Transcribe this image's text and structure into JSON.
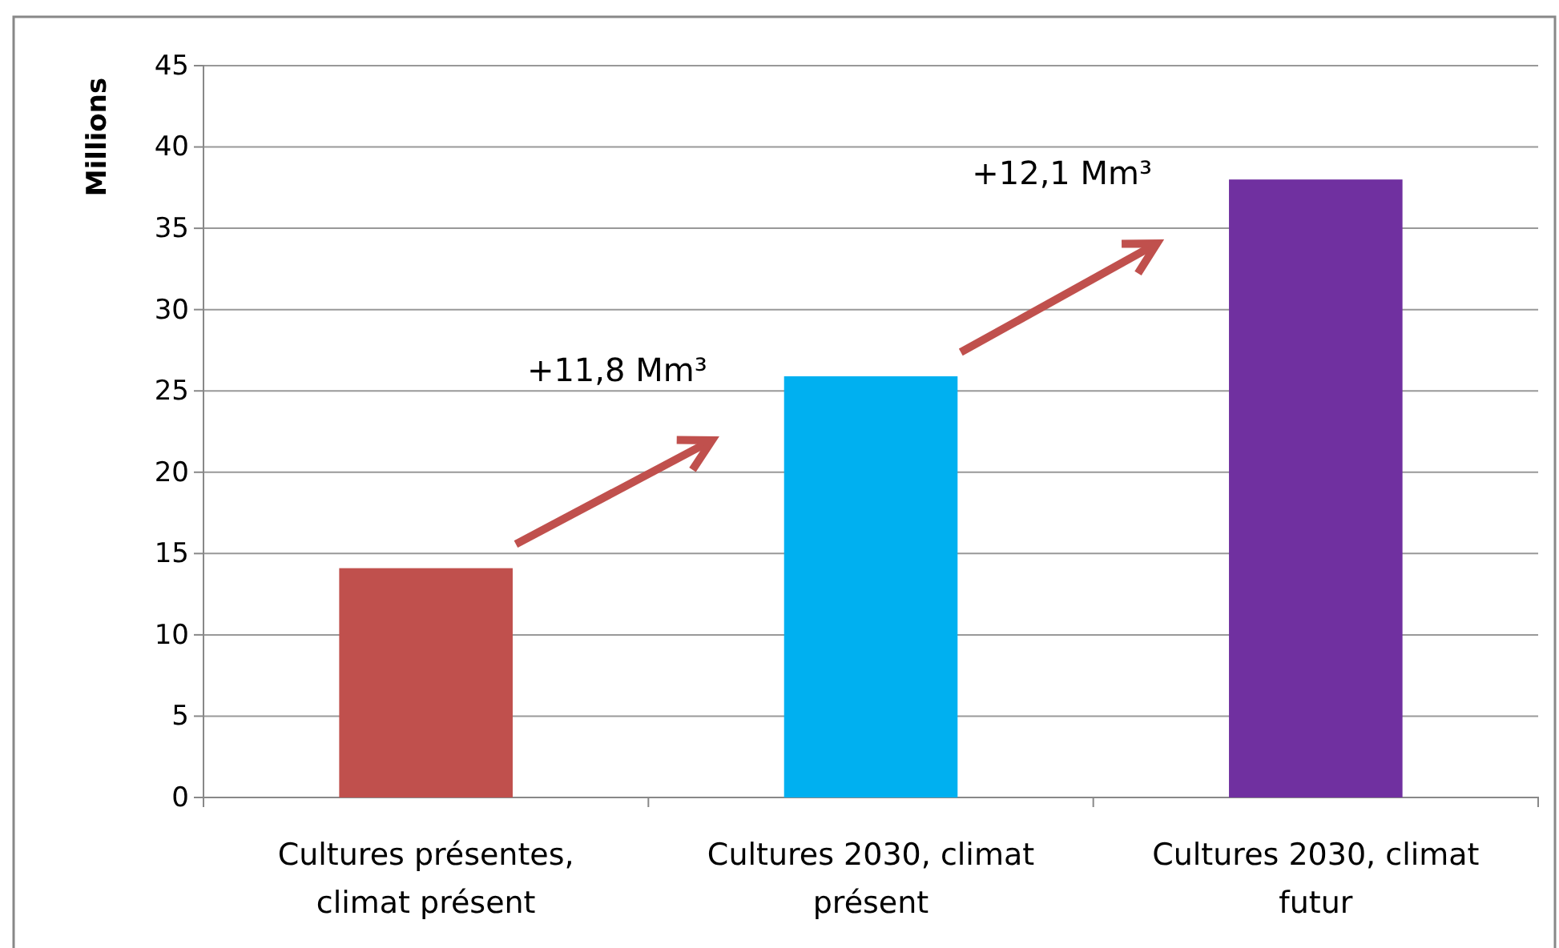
{
  "chart_data": {
    "type": "bar",
    "ylabel": "Millions",
    "categories": [
      "Cultures présentes, climat présent",
      "Cultures 2030, climat présent",
      "Cultures 2030, climat futur"
    ],
    "values": [
      14.1,
      25.9,
      38.0
    ],
    "colors": [
      "#c0504d",
      "#00b0f0",
      "#7030a0"
    ],
    "ylim": [
      0,
      45
    ],
    "yticks": [
      0,
      5,
      10,
      15,
      20,
      25,
      30,
      35,
      40,
      45
    ],
    "grid": "y",
    "annotations": [
      "+11,8 Mm³",
      "+12,1 Mm³"
    ]
  }
}
